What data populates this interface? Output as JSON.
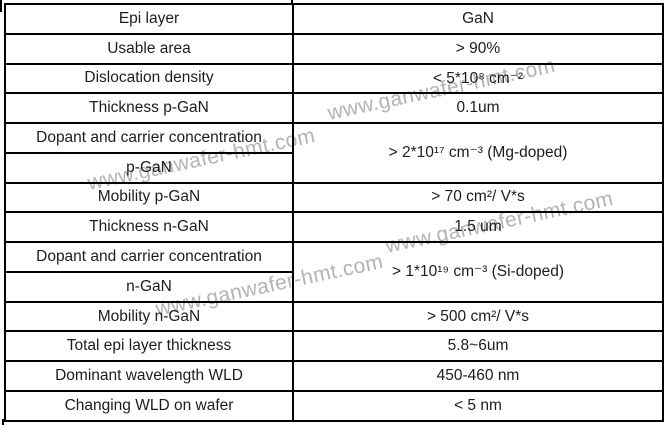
{
  "watermark": {
    "text": "www.ganwafer-hmt.com",
    "color": "#b4b4b4"
  },
  "table": {
    "rows": [
      {
        "label": "Epi layer",
        "value": "GaN"
      },
      {
        "label": "Usable area",
        "value": "> 90%"
      },
      {
        "label": "Dislocation density",
        "value": "< 5*10⁸ cm⁻²"
      },
      {
        "label": "Thickness p-GaN",
        "value": "0.1um"
      },
      {
        "label": "Dopant and carrier concentration",
        "label2": "p-GaN",
        "value": "> 2*10¹⁷ cm⁻³ (Mg-doped)"
      },
      {
        "label": "Mobility p-GaN",
        "value": "> 70 cm²/ V*s"
      },
      {
        "label": "Thickness n-GaN",
        "value": "1.5 um"
      },
      {
        "label": "Dopant and carrier concentration",
        "label2": "n-GaN",
        "value": "> 1*10¹⁹ cm⁻³ (Si-doped)"
      },
      {
        "label": "Mobility n-GaN",
        "value": "> 500 cm²/ V*s"
      },
      {
        "label": "Total epi layer thickness",
        "value": "5.8~6um"
      },
      {
        "label": "Dominant wavelength WLD",
        "value": "450-460 nm"
      },
      {
        "label": "Changing WLD on wafer",
        "value": "< 5 nm"
      }
    ]
  }
}
